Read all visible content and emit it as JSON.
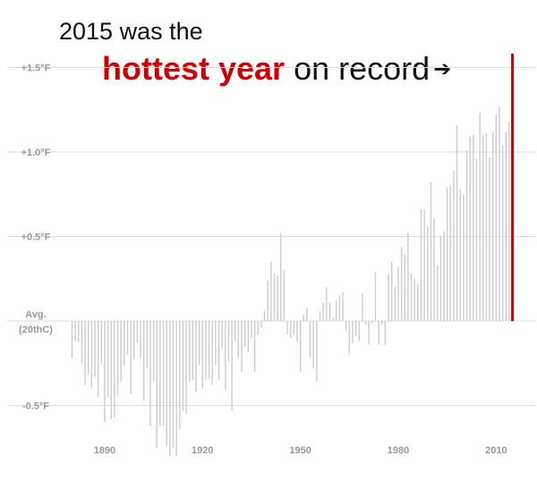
{
  "headline": {
    "line1": "2015 was the",
    "highlight": "hottest year",
    "rest": "on record",
    "arrow": "➔"
  },
  "colors": {
    "bars": "#cccccc",
    "highlight": "#cc0000",
    "grid": "#dddddd",
    "axis_text": "#999999"
  },
  "chart_data": {
    "type": "bar",
    "title": "2015 was the hottest year on record",
    "xlabel": "",
    "ylabel": "",
    "ylim": [
      -0.75,
      1.6
    ],
    "baseline_label": [
      "Avg.",
      "(20thC)"
    ],
    "y_ticks": [
      {
        "value": 1.5,
        "label": "+1.5°F"
      },
      {
        "value": 1.0,
        "label": "+1.0°F"
      },
      {
        "value": 0.5,
        "label": "+0.5°F"
      },
      {
        "value": -0.5,
        "label": "-0.5°F"
      }
    ],
    "x_ticks": [
      1890,
      1920,
      1950,
      1980,
      2010
    ],
    "highlight_year": 2015,
    "x": [
      1880,
      1881,
      1882,
      1883,
      1884,
      1885,
      1886,
      1887,
      1888,
      1889,
      1890,
      1891,
      1892,
      1893,
      1894,
      1895,
      1896,
      1897,
      1898,
      1899,
      1900,
      1901,
      1902,
      1903,
      1904,
      1905,
      1906,
      1907,
      1908,
      1909,
      1910,
      1911,
      1912,
      1913,
      1914,
      1915,
      1916,
      1917,
      1918,
      1919,
      1920,
      1921,
      1922,
      1923,
      1924,
      1925,
      1926,
      1927,
      1928,
      1929,
      1930,
      1931,
      1932,
      1933,
      1934,
      1935,
      1936,
      1937,
      1938,
      1939,
      1940,
      1941,
      1942,
      1943,
      1944,
      1945,
      1946,
      1947,
      1948,
      1949,
      1950,
      1951,
      1952,
      1953,
      1954,
      1955,
      1956,
      1957,
      1958,
      1959,
      1960,
      1961,
      1962,
      1963,
      1964,
      1965,
      1966,
      1967,
      1968,
      1969,
      1970,
      1971,
      1972,
      1973,
      1974,
      1975,
      1976,
      1977,
      1978,
      1979,
      1980,
      1981,
      1982,
      1983,
      1984,
      1985,
      1986,
      1987,
      1988,
      1989,
      1990,
      1991,
      1992,
      1993,
      1994,
      1995,
      1996,
      1997,
      1998,
      1999,
      2000,
      2001,
      2002,
      2003,
      2004,
      2005,
      2006,
      2007,
      2008,
      2009,
      2010,
      2011,
      2012,
      2013,
      2014,
      2015
    ],
    "values": [
      -0.22,
      -0.12,
      -0.12,
      -0.25,
      -0.38,
      -0.32,
      -0.4,
      -0.33,
      -0.45,
      -0.25,
      -0.6,
      -0.45,
      -0.58,
      -0.57,
      -0.44,
      -0.36,
      -0.26,
      -0.2,
      -0.43,
      -0.22,
      -0.13,
      -0.22,
      -0.47,
      -0.28,
      -0.62,
      -0.36,
      -0.75,
      -0.62,
      -0.62,
      -0.74,
      -0.8,
      -0.75,
      -0.8,
      -0.64,
      -0.53,
      -0.55,
      -0.36,
      -0.35,
      -0.42,
      -0.26,
      -0.4,
      -0.35,
      -0.34,
      -0.38,
      -0.26,
      -0.35,
      -0.16,
      -0.41,
      -0.24,
      -0.53,
      -0.12,
      -0.22,
      -0.3,
      -0.15,
      -0.18,
      -0.1,
      -0.3,
      -0.08,
      -0.04,
      0.06,
      0.24,
      0.35,
      0.28,
      0.27,
      0.52,
      0.3,
      -0.08,
      -0.1,
      -0.08,
      -0.12,
      -0.3,
      0.04,
      0.08,
      -0.22,
      -0.28,
      -0.36,
      0.06,
      0.11,
      0.2,
      0.11,
      0.02,
      0.12,
      0.15,
      0.17,
      -0.06,
      -0.2,
      -0.13,
      -0.09,
      -0.12,
      0.16,
      -0.02,
      -0.14,
      -0.01,
      0.29,
      -0.14,
      -0.02,
      -0.14,
      0.28,
      0.35,
      0.2,
      0.32,
      0.44,
      0.39,
      0.52,
      0.28,
      0.25,
      0.22,
      0.66,
      0.66,
      0.56,
      0.82,
      0.61,
      0.33,
      0.5,
      0.53,
      0.79,
      0.8,
      0.89,
      1.16,
      0.78,
      0.75,
      1.01,
      1.09,
      1.1,
      0.96,
      1.23,
      1.1,
      1.11,
      0.97,
      1.12,
      1.22,
      1.27,
      1.04,
      1.12,
      1.18,
      1.35
    ]
  }
}
